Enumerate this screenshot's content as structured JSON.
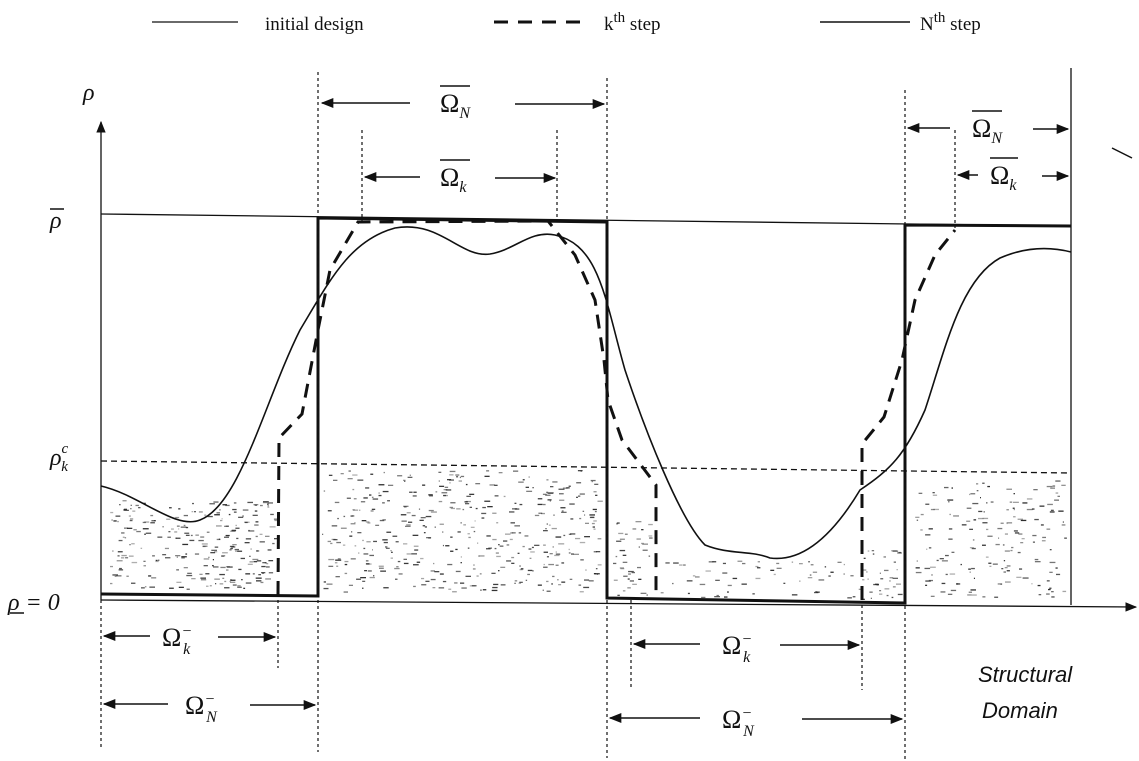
{
  "legend": {
    "initial": "initial design",
    "kth_base": "k",
    "kth_sup": "th",
    "kth_word": "step",
    "nth_base": "N",
    "nth_sup": "th",
    "nth_word": "step"
  },
  "axis": {
    "y_symbol": "ρ",
    "rho_bar": "ρ",
    "rho_kc_base": "ρ",
    "rho_kc_sup": "c",
    "rho_kc_sub": "k",
    "rho_zero": "ρ = 0",
    "x_label_line1": "Structural",
    "x_label_line2": "Domain"
  },
  "regions": {
    "omega": "Ω",
    "sub_n": "N",
    "sub_k": "k",
    "minus": "−"
  }
}
